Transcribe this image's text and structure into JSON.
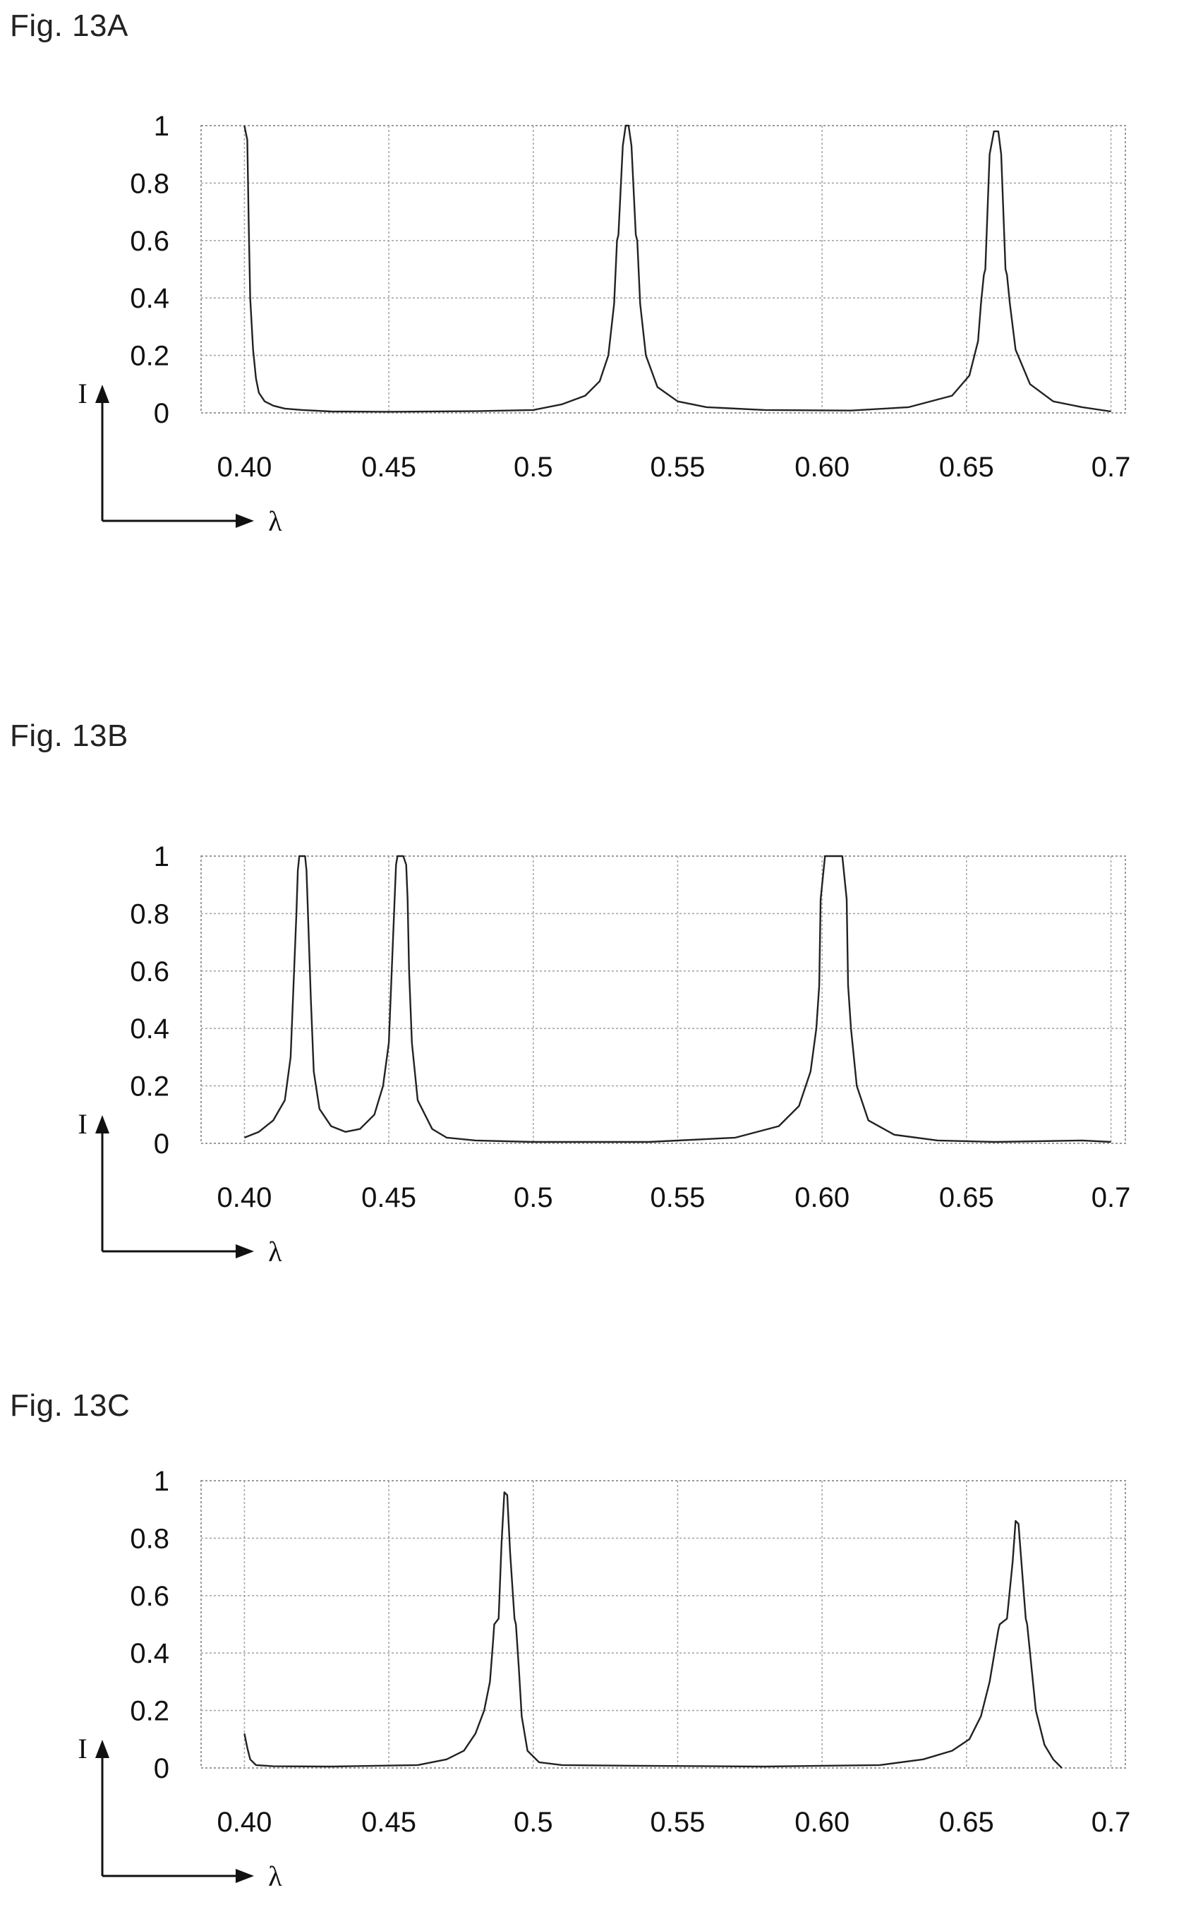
{
  "figures": [
    {
      "label": "Fig. 13A",
      "chart_data": {
        "type": "line",
        "title": "",
        "xlabel": "λ",
        "ylabel": "I",
        "xlim": [
          0.385,
          0.705
        ],
        "ylim": [
          0,
          1
        ],
        "x_ticks": [
          "0.40",
          "0.45",
          "0.5",
          "0.55",
          "0.60",
          "0.65",
          "0.7"
        ],
        "y_ticks": [
          "0",
          "0.2",
          "0.4",
          "0.6",
          "0.8",
          "1"
        ],
        "grid": true,
        "series": [
          {
            "x": [
              0.4,
              0.401,
              0.4015,
              0.402,
              0.403,
              0.404,
              0.405,
              0.407,
              0.41,
              0.414,
              0.42,
              0.43,
              0.45,
              0.48,
              0.5,
              0.51,
              0.518,
              0.523,
              0.526,
              0.528,
              0.529,
              0.5295,
              0.531,
              0.532,
              0.533,
              0.534,
              0.5355,
              0.536,
              0.537,
              0.539,
              0.543,
              0.55,
              0.56,
              0.58,
              0.61,
              0.63,
              0.645,
              0.651,
              0.654,
              0.655,
              0.656,
              0.6565,
              0.658,
              0.6595,
              0.661,
              0.662,
              0.6635,
              0.664,
              0.665,
              0.667,
              0.672,
              0.68,
              0.69,
              0.7
            ],
            "y": [
              1.0,
              0.95,
              0.66,
              0.4,
              0.22,
              0.12,
              0.07,
              0.04,
              0.025,
              0.015,
              0.01,
              0.005,
              0.004,
              0.006,
              0.01,
              0.03,
              0.06,
              0.11,
              0.2,
              0.38,
              0.6,
              0.62,
              0.93,
              1.0,
              1.0,
              0.93,
              0.62,
              0.6,
              0.38,
              0.2,
              0.09,
              0.04,
              0.02,
              0.01,
              0.008,
              0.02,
              0.06,
              0.13,
              0.25,
              0.38,
              0.48,
              0.5,
              0.9,
              0.98,
              0.98,
              0.9,
              0.5,
              0.48,
              0.38,
              0.22,
              0.1,
              0.04,
              0.02,
              0.005
            ]
          }
        ]
      }
    },
    {
      "label": "Fig. 13B",
      "chart_data": {
        "type": "line",
        "title": "",
        "xlabel": "λ",
        "ylabel": "I",
        "xlim": [
          0.385,
          0.705
        ],
        "ylim": [
          0,
          1
        ],
        "x_ticks": [
          "0.40",
          "0.45",
          "0.5",
          "0.55",
          "0.60",
          "0.65",
          "0.7"
        ],
        "y_ticks": [
          "0",
          "0.2",
          "0.4",
          "0.6",
          "0.8",
          "1"
        ],
        "grid": true,
        "series": [
          {
            "x": [
              0.4,
              0.405,
              0.41,
              0.414,
              0.416,
              0.417,
              0.418,
              0.4185,
              0.419,
              0.42,
              0.421,
              0.4215,
              0.422,
              0.423,
              0.424,
              0.426,
              0.43,
              0.435,
              0.44,
              0.445,
              0.448,
              0.45,
              0.451,
              0.452,
              0.4525,
              0.453,
              0.455,
              0.456,
              0.4565,
              0.457,
              0.458,
              0.46,
              0.465,
              0.47,
              0.48,
              0.5,
              0.54,
              0.57,
              0.585,
              0.592,
              0.596,
              0.598,
              0.599,
              0.5995,
              0.601,
              0.603,
              0.605,
              0.607,
              0.6085,
              0.609,
              0.61,
              0.612,
              0.616,
              0.625,
              0.64,
              0.66,
              0.69,
              0.7
            ],
            "y": [
              0.02,
              0.04,
              0.08,
              0.15,
              0.3,
              0.55,
              0.8,
              0.95,
              1.0,
              1.0,
              1.0,
              0.95,
              0.8,
              0.5,
              0.25,
              0.12,
              0.06,
              0.04,
              0.05,
              0.1,
              0.2,
              0.35,
              0.6,
              0.85,
              0.97,
              1.0,
              1.0,
              0.97,
              0.85,
              0.6,
              0.35,
              0.15,
              0.05,
              0.02,
              0.01,
              0.005,
              0.005,
              0.02,
              0.06,
              0.13,
              0.25,
              0.4,
              0.55,
              0.85,
              1.0,
              1.0,
              1.0,
              1.0,
              0.85,
              0.55,
              0.4,
              0.2,
              0.08,
              0.03,
              0.01,
              0.005,
              0.01,
              0.005
            ]
          }
        ]
      }
    },
    {
      "label": "Fig. 13C",
      "chart_data": {
        "type": "line",
        "title": "",
        "xlabel": "λ",
        "ylabel": "I",
        "xlim": [
          0.385,
          0.705
        ],
        "ylim": [
          0,
          1
        ],
        "x_ticks": [
          "0.40",
          "0.45",
          "0.5",
          "0.55",
          "0.60",
          "0.65",
          "0.7"
        ],
        "y_ticks": [
          "0",
          "0.2",
          "0.4",
          "0.6",
          "0.8",
          "1"
        ],
        "grid": true,
        "series": [
          {
            "x": [
              0.4,
              0.401,
              0.402,
              0.404,
              0.41,
              0.43,
              0.46,
              0.47,
              0.476,
              0.48,
              0.483,
              0.485,
              0.486,
              0.4865,
              0.488,
              0.489,
              0.49,
              0.491,
              0.492,
              0.4935,
              0.494,
              0.495,
              0.496,
              0.498,
              0.502,
              0.51,
              0.53,
              0.58,
              0.62,
              0.635,
              0.645,
              0.651,
              0.655,
              0.658,
              0.66,
              0.661,
              0.6615,
              0.664,
              0.666,
              0.667,
              0.668,
              0.6705,
              0.671,
              0.672,
              0.674,
              0.677,
              0.68,
              0.682,
              0.683
            ],
            "y": [
              0.12,
              0.07,
              0.03,
              0.01,
              0.006,
              0.005,
              0.01,
              0.03,
              0.06,
              0.12,
              0.2,
              0.3,
              0.43,
              0.5,
              0.52,
              0.78,
              0.96,
              0.95,
              0.75,
              0.52,
              0.5,
              0.35,
              0.18,
              0.06,
              0.02,
              0.01,
              0.008,
              0.005,
              0.01,
              0.03,
              0.06,
              0.1,
              0.18,
              0.3,
              0.42,
              0.48,
              0.5,
              0.52,
              0.72,
              0.86,
              0.85,
              0.52,
              0.5,
              0.4,
              0.2,
              0.08,
              0.03,
              0.01,
              0.0
            ]
          }
        ]
      }
    }
  ]
}
